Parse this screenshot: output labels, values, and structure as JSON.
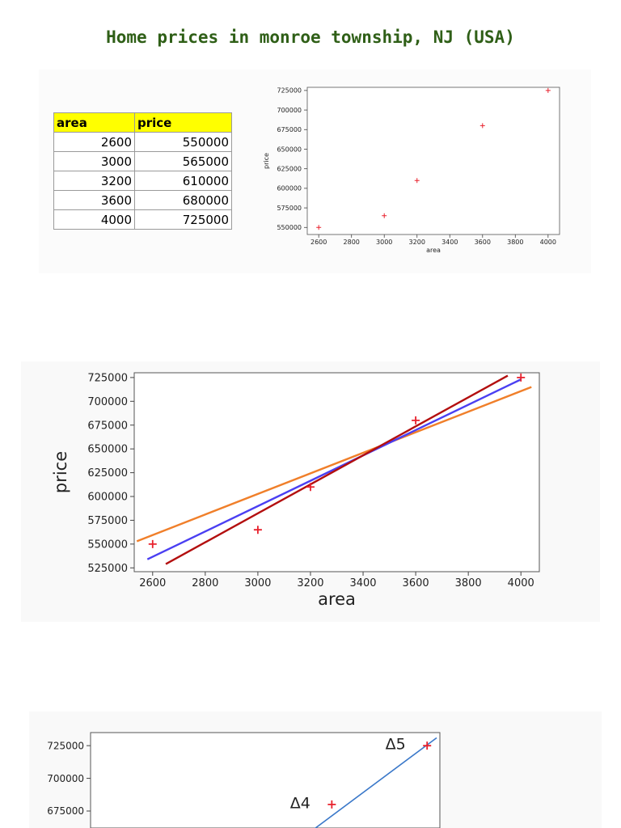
{
  "title": "Home prices in monroe township, NJ (USA)",
  "table": {
    "headers": [
      "area",
      "price"
    ],
    "rows": [
      [
        "2600",
        "550000"
      ],
      [
        "3000",
        "565000"
      ],
      [
        "3200",
        "610000"
      ],
      [
        "3600",
        "680000"
      ],
      [
        "4000",
        "725000"
      ]
    ]
  },
  "colors": {
    "title": "#2f5f17",
    "header_bg": "#ffff00",
    "marker": "#e8212c",
    "orange": "#f07f2a",
    "blue": "#4a3ff2",
    "darkred": "#b30f0f",
    "steelblue": "#3a78c9"
  },
  "chart_data": [
    {
      "type": "scatter",
      "xlabel": "area",
      "ylabel": "price",
      "xlim": [
        2530,
        4070
      ],
      "ylim": [
        541000,
        729000
      ],
      "xticks": [
        2600,
        2800,
        3000,
        3200,
        3400,
        3600,
        3800,
        4000
      ],
      "yticks": [
        550000,
        575000,
        600000,
        625000,
        650000,
        675000,
        700000,
        725000
      ],
      "series": [
        {
          "x": [
            2600,
            3000,
            3200,
            3600,
            4000
          ],
          "y": [
            550000,
            565000,
            610000,
            680000,
            725000
          ],
          "marker": "+"
        }
      ]
    },
    {
      "type": "scatter",
      "xlabel": "area",
      "ylabel": "price",
      "xlim": [
        2530,
        4070
      ],
      "ylim": [
        521000,
        730000
      ],
      "xticks": [
        2600,
        2800,
        3000,
        3200,
        3400,
        3600,
        3800,
        4000
      ],
      "yticks": [
        525000,
        550000,
        575000,
        600000,
        625000,
        650000,
        675000,
        700000,
        725000
      ],
      "series": [
        {
          "x": [
            2600,
            3000,
            3200,
            3600,
            4000
          ],
          "y": [
            550000,
            565000,
            610000,
            680000,
            725000
          ],
          "marker": "+"
        }
      ],
      "lines": [
        {
          "x": [
            2540,
            4040
          ],
          "y": [
            553000,
            715000
          ],
          "color": "#f07f2a"
        },
        {
          "x": [
            2580,
            4000
          ],
          "y": [
            534000,
            723000
          ],
          "color": "#4a3ff2"
        },
        {
          "x": [
            2650,
            3950
          ],
          "y": [
            529000,
            727000
          ],
          "color": "#b30f0f"
        }
      ]
    },
    {
      "type": "scatter",
      "ylim": [
        662000,
        735000
      ],
      "yticks": [
        675000,
        700000,
        725000
      ],
      "series": [
        {
          "x": [
            3600,
            4000
          ],
          "y": [
            680000,
            725000
          ],
          "marker": "+"
        }
      ],
      "lines": [
        {
          "x": [
            3480,
            4040
          ],
          "y": [
            655000,
            731000
          ],
          "color": "#3a78c9"
        }
      ],
      "annotations": [
        {
          "text": "Δ5",
          "x": 3920,
          "y": 726000
        },
        {
          "text": "Δ4",
          "x": 3520,
          "y": 681000
        }
      ]
    }
  ]
}
